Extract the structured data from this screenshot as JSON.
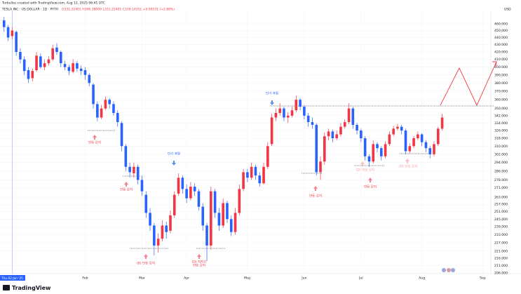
{
  "header": {
    "attribution": "Turbulles created with TradingView.com, Aug 12, 2025 06:41 UTC",
    "symbol": "TESLA INC · US DOLLAR · 1D · PYTH",
    "ohlc": "O331.22401 H346.38000 L331.22401 C339.14351 +9.00531 (+2.88%)",
    "currency": "USD"
  },
  "chart_data": {
    "type": "candlestick",
    "log_scale": true,
    "grid": true,
    "up_color": "#f23645",
    "down_color": "#2962ff",
    "ylim": [
      205.5,
      480
    ],
    "yticks": [
      {
        "value": 460,
        "label": "460.000"
      },
      {
        "value": 450,
        "label": "450.000"
      },
      {
        "value": 440,
        "label": "440.000"
      },
      {
        "value": 430,
        "label": "430.000"
      },
      {
        "value": 420,
        "label": "420.000"
      },
      {
        "value": 410,
        "label": "410.000"
      },
      {
        "value": 400,
        "label": "400.000"
      },
      {
        "value": 390,
        "label": "390.000"
      },
      {
        "value": 380,
        "label": "380.000"
      },
      {
        "value": 370,
        "label": "370.000"
      },
      {
        "value": 360,
        "label": "360.000"
      },
      {
        "value": 350,
        "label": "350.000"
      },
      {
        "value": 342,
        "label": "342.000"
      },
      {
        "value": 334,
        "label": "334.000"
      },
      {
        "value": 326,
        "label": "326.000"
      },
      {
        "value": 318,
        "label": "318.000"
      },
      {
        "value": 310,
        "label": "310.000"
      },
      {
        "value": 302,
        "label": "302.000"
      },
      {
        "value": 294,
        "label": "294.000"
      },
      {
        "value": 286,
        "label": "286.000"
      },
      {
        "value": 278,
        "label": "278.000"
      },
      {
        "value": 271,
        "label": "271.000"
      },
      {
        "value": 263,
        "label": "263.000"
      },
      {
        "value": 257,
        "label": "257.000"
      },
      {
        "value": 251,
        "label": "251.000"
      },
      {
        "value": 245,
        "label": "245.000"
      },
      {
        "value": 239,
        "label": "239.000"
      },
      {
        "value": 233,
        "label": "233.000"
      },
      {
        "value": 227,
        "label": "227.000"
      },
      {
        "value": 221,
        "label": "221.000"
      },
      {
        "value": 216,
        "label": "216.000"
      },
      {
        "value": 211,
        "label": "211.000"
      },
      {
        "value": 206,
        "label": "206.000"
      }
    ],
    "xlim": [
      -1,
      120
    ],
    "xticks": [
      {
        "value": 20,
        "label": "Feb"
      },
      {
        "value": 34,
        "label": "Mar"
      },
      {
        "value": 45,
        "label": "Apr"
      },
      {
        "value": 60,
        "label": "May"
      },
      {
        "value": 74,
        "label": "Jun"
      },
      {
        "value": 88,
        "label": "Jul"
      },
      {
        "value": 103,
        "label": "Aug"
      },
      {
        "value": 118,
        "label": "Sep"
      }
    ],
    "crosshair": {
      "value": 2,
      "label": "Thu 02 Jan '25"
    },
    "ohlc": [
      [
        465,
        470,
        448,
        455
      ],
      [
        455,
        458,
        435,
        440
      ],
      [
        442,
        455,
        438,
        450
      ],
      [
        448,
        450,
        415,
        420
      ],
      [
        420,
        425,
        405,
        410
      ],
      [
        410,
        414,
        390,
        395
      ],
      [
        396,
        400,
        380,
        385
      ],
      [
        386,
        398,
        382,
        395
      ],
      [
        396,
        420,
        394,
        415
      ],
      [
        414,
        418,
        398,
        400
      ],
      [
        400,
        410,
        396,
        405
      ],
      [
        405,
        414,
        402,
        410
      ],
      [
        410,
        430,
        408,
        425
      ],
      [
        426,
        432,
        416,
        420
      ],
      [
        420,
        422,
        400,
        405
      ],
      [
        404,
        408,
        396,
        400
      ],
      [
        400,
        403,
        390,
        395
      ],
      [
        394,
        410,
        392,
        405
      ],
      [
        405,
        408,
        394,
        398
      ],
      [
        398,
        402,
        390,
        395
      ],
      [
        396,
        400,
        384,
        390
      ],
      [
        390,
        392,
        376,
        380
      ],
      [
        378,
        380,
        350,
        355
      ],
      [
        355,
        358,
        336,
        340
      ],
      [
        340,
        354,
        338,
        350
      ],
      [
        350,
        364,
        348,
        360
      ],
      [
        360,
        362,
        350,
        355
      ],
      [
        355,
        358,
        342,
        345
      ],
      [
        345,
        348,
        330,
        335
      ],
      [
        334,
        336,
        305,
        310
      ],
      [
        310,
        312,
        286,
        290
      ],
      [
        290,
        294,
        280,
        285
      ],
      [
        284,
        294,
        280,
        290
      ],
      [
        290,
        292,
        274,
        278
      ],
      [
        278,
        282,
        264,
        268
      ],
      [
        265,
        268,
        246,
        250
      ],
      [
        250,
        254,
        236,
        240
      ],
      [
        240,
        242,
        218,
        225
      ],
      [
        225,
        234,
        220,
        230
      ],
      [
        230,
        244,
        228,
        240
      ],
      [
        240,
        243,
        230,
        235
      ],
      [
        236,
        252,
        234,
        248
      ],
      [
        248,
        268,
        246,
        265
      ],
      [
        266,
        284,
        264,
        280
      ],
      [
        280,
        282,
        266,
        270
      ],
      [
        270,
        274,
        258,
        262
      ],
      [
        262,
        276,
        260,
        272
      ],
      [
        272,
        275,
        264,
        268
      ],
      [
        268,
        270,
        252,
        255
      ],
      [
        255,
        258,
        236,
        240
      ],
      [
        240,
        242,
        214,
        225
      ],
      [
        225,
        272,
        222,
        268
      ],
      [
        268,
        270,
        246,
        250
      ],
      [
        250,
        254,
        236,
        240
      ],
      [
        240,
        262,
        238,
        258
      ],
      [
        258,
        260,
        242,
        245
      ],
      [
        245,
        248,
        232,
        235
      ],
      [
        235,
        254,
        233,
        250
      ],
      [
        250,
        274,
        248,
        270
      ],
      [
        270,
        288,
        268,
        285
      ],
      [
        285,
        288,
        276,
        280
      ],
      [
        280,
        294,
        278,
        290
      ],
      [
        290,
        292,
        278,
        282
      ],
      [
        282,
        285,
        272,
        275
      ],
      [
        275,
        294,
        274,
        290
      ],
      [
        290,
        314,
        288,
        310
      ],
      [
        312,
        344,
        310,
        340
      ],
      [
        340,
        350,
        336,
        345
      ],
      [
        345,
        356,
        342,
        350
      ],
      [
        350,
        352,
        336,
        340
      ],
      [
        340,
        346,
        334,
        342
      ],
      [
        342,
        352,
        340,
        348
      ],
      [
        348,
        365,
        346,
        360
      ],
      [
        360,
        362,
        348,
        352
      ],
      [
        352,
        354,
        338,
        342
      ],
      [
        342,
        345,
        330,
        335
      ],
      [
        335,
        340,
        328,
        332
      ],
      [
        332,
        334,
        282,
        285
      ],
      [
        285,
        300,
        278,
        295
      ],
      [
        295,
        324,
        292,
        320
      ],
      [
        320,
        328,
        316,
        325
      ],
      [
        325,
        327,
        314,
        318
      ],
      [
        318,
        326,
        316,
        322
      ],
      [
        322,
        334,
        320,
        330
      ],
      [
        330,
        338,
        328,
        335
      ],
      [
        335,
        356,
        333,
        350
      ],
      [
        350,
        352,
        328,
        332
      ],
      [
        332,
        334,
        322,
        326
      ],
      [
        326,
        328,
        314,
        318
      ],
      [
        318,
        320,
        296,
        300
      ],
      [
        300,
        302,
        290,
        295
      ],
      [
        295,
        316,
        293,
        312
      ],
      [
        312,
        314,
        304,
        308
      ],
      [
        308,
        310,
        296,
        300
      ],
      [
        300,
        315,
        298,
        312
      ],
      [
        312,
        325,
        310,
        322
      ],
      [
        322,
        331,
        320,
        328
      ],
      [
        328,
        333,
        326,
        330
      ],
      [
        330,
        332,
        322,
        326
      ],
      [
        326,
        328,
        302,
        305
      ],
      [
        305,
        313,
        303,
        310
      ],
      [
        310,
        320,
        308,
        318
      ],
      [
        318,
        325,
        316,
        322
      ],
      [
        322,
        323,
        310,
        314
      ],
      [
        314,
        316,
        304,
        308
      ],
      [
        308,
        310,
        298,
        302
      ],
      [
        302,
        315,
        300,
        312
      ],
      [
        312,
        330,
        310,
        328
      ],
      [
        328,
        344,
        326,
        340
      ]
    ],
    "annotations": [
      {
        "text": "반등 감지"
      },
      {
        "text": "반등 감지"
      },
      {
        "text": "(B) 반등 감지"
      },
      {
        "text": "(D) 지지선"
      },
      {
        "text": "반등 감지"
      },
      {
        "text": "단기 과열"
      },
      {
        "text": "단기 과열"
      },
      {
        "text": "반등 감지"
      },
      {
        "text": "(D) 반등 감지"
      },
      {
        "text": "반등 감지"
      },
      {
        "text": "(D) 반등 감지"
      }
    ]
  },
  "footer": {
    "logo": "TradingView"
  }
}
